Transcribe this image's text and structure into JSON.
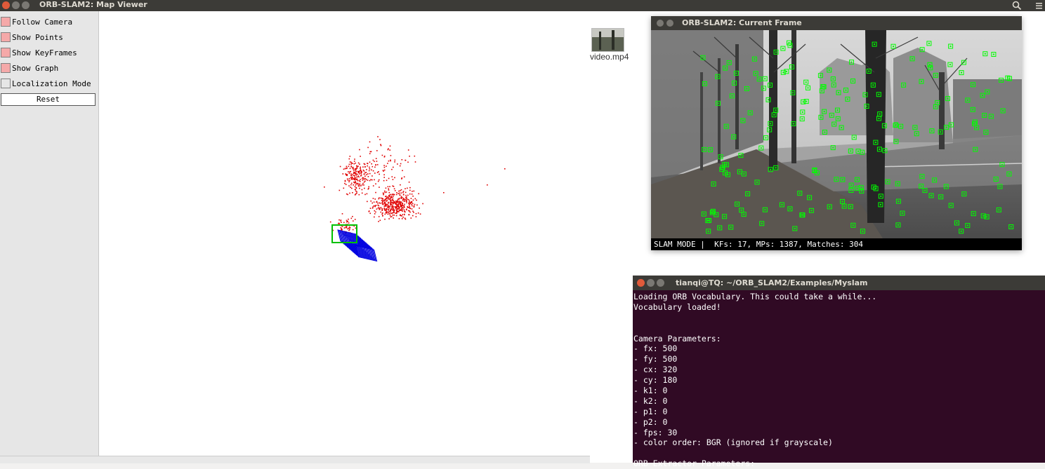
{
  "top_panel": {
    "title": "ORB-SLAM2: Map Viewer"
  },
  "map_viewer": {
    "options": [
      {
        "label": "Follow Camera",
        "checked": true
      },
      {
        "label": "Show Points",
        "checked": true
      },
      {
        "label": "Show KeyFrames",
        "checked": true
      },
      {
        "label": "Show Graph",
        "checked": true
      },
      {
        "label": "Localization Mode",
        "checked": false
      }
    ],
    "reset_label": "Reset",
    "colors": {
      "map_points": "#e00000",
      "keyframes": "#0000e0",
      "current_camera": "#00c000",
      "checkbox_on": "#f5a9a9"
    }
  },
  "desktop": {
    "file_name": "video.mp4"
  },
  "current_frame": {
    "title": "ORB-SLAM2: Current Frame",
    "status": "SLAM MODE |  KFs: 17, MPs: 1387, Matches: 304",
    "feature_color": "#00ff00"
  },
  "terminal": {
    "title": "tianqi@TQ: ~/ORB_SLAM2/Examples/Myslam",
    "lines": [
      "Loading ORB Vocabulary. This could take a while...",
      "Vocabulary loaded!",
      "",
      "",
      "Camera Parameters:",
      "- fx: 500",
      "- fy: 500",
      "- cx: 320",
      "- cy: 180",
      "- k1: 0",
      "- k2: 0",
      "- p1: 0",
      "- p2: 0",
      "- fps: 30",
      "- color order: BGR (ignored if grayscale)",
      "",
      "ORB Extractor Parameters:"
    ]
  }
}
